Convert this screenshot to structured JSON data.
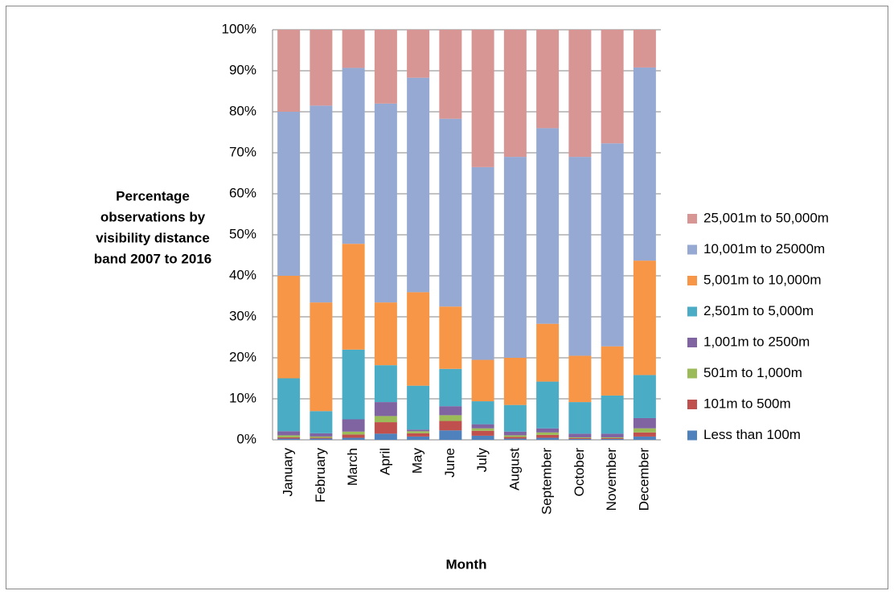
{
  "chart_data": {
    "type": "stacked_bar",
    "ylabel": [
      "Percentage",
      "observations by",
      "visibility distance",
      "band 2007 to 2016"
    ],
    "xlabel": "Month",
    "categories": [
      "January",
      "February",
      "March",
      "April",
      "May",
      "June",
      "July",
      "August",
      "September",
      "October",
      "November",
      "December"
    ],
    "series": [
      {
        "name": "Less than 100m",
        "color": "#4F81BD",
        "values": [
          0.3,
          0.3,
          0.5,
          1.5,
          0.8,
          2.3,
          1.0,
          0.3,
          0.5,
          0.2,
          0.2,
          0.8
        ]
      },
      {
        "name": "101m to 500m",
        "color": "#C0504D",
        "values": [
          0.3,
          0.2,
          0.8,
          2.8,
          0.8,
          2.3,
          1.2,
          0.4,
          0.7,
          0.2,
          0.2,
          1.0
        ]
      },
      {
        "name": "501m to 1,000m",
        "color": "#9BBB59",
        "values": [
          0.5,
          0.3,
          0.7,
          1.5,
          0.5,
          1.4,
          0.6,
          0.4,
          0.6,
          0.2,
          0.2,
          1.0
        ]
      },
      {
        "name": "1,001m to 2500m",
        "color": "#8064A2",
        "values": [
          1.0,
          0.8,
          3.0,
          3.4,
          0.4,
          2.2,
          1.0,
          0.9,
          1.0,
          0.9,
          0.9,
          2.5
        ]
      },
      {
        "name": "2,501m to 5,000m",
        "color": "#4BACC6",
        "values": [
          12.9,
          5.4,
          17.0,
          9.0,
          10.7,
          9.1,
          5.6,
          6.5,
          11.4,
          7.7,
          9.3,
          10.5
        ]
      },
      {
        "name": "5,001m to 10,000m",
        "color": "#F79646",
        "values": [
          25.0,
          26.5,
          25.8,
          15.3,
          22.8,
          15.2,
          10.1,
          11.5,
          14.1,
          11.3,
          12.0,
          27.9
        ]
      },
      {
        "name": "10,001m to 25000m",
        "color": "#95A9D3",
        "values": [
          40.0,
          48.0,
          42.9,
          48.5,
          52.3,
          45.8,
          47.0,
          49.0,
          47.7,
          48.5,
          49.5,
          47.1
        ]
      },
      {
        "name": "25,001m to 50,000m",
        "color": "#D79593",
        "values": [
          20.0,
          18.5,
          9.3,
          18.0,
          11.7,
          21.7,
          33.5,
          31.0,
          24.0,
          31.0,
          27.7,
          9.2
        ]
      }
    ],
    "ylim": [
      0,
      100
    ],
    "yticks": [
      {
        "value": 0,
        "label": "0%"
      },
      {
        "value": 10,
        "label": "10%"
      },
      {
        "value": 20,
        "label": "20%"
      },
      {
        "value": 30,
        "label": "30%"
      },
      {
        "value": 40,
        "label": "40%"
      },
      {
        "value": 50,
        "label": "50%"
      },
      {
        "value": 60,
        "label": "60%"
      },
      {
        "value": 70,
        "label": "70%"
      },
      {
        "value": 80,
        "label": "80%"
      },
      {
        "value": 90,
        "label": "90%"
      },
      {
        "value": 100,
        "label": "100%"
      }
    ],
    "grid": true,
    "legend": "right"
  }
}
